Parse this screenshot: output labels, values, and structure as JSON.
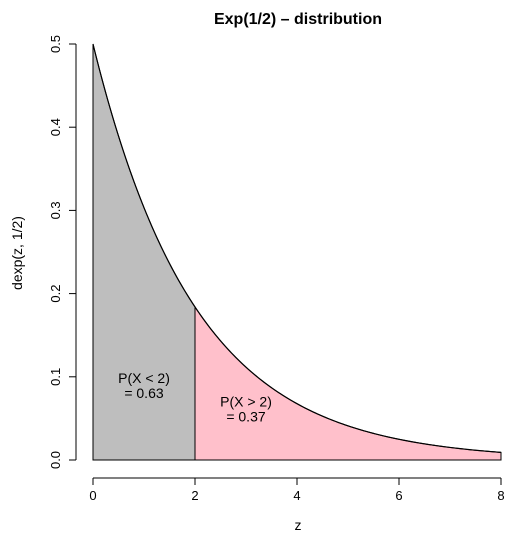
{
  "chart_data": {
    "type": "area",
    "title": "Exp(1/2) – distribution",
    "xlabel": "z",
    "ylabel": "dexp(z, 1/2)",
    "rate": 0.5,
    "xlim": [
      0,
      8
    ],
    "ylim": [
      0,
      0.5
    ],
    "x_ticks": [
      0,
      2,
      4,
      6,
      8
    ],
    "y_ticks": [
      0.0,
      0.1,
      0.2,
      0.3,
      0.4,
      0.5
    ],
    "y_tick_labels": [
      "0.0",
      "0.1",
      "0.2",
      "0.3",
      "0.4",
      "0.5"
    ],
    "grid": false,
    "split_x": 2,
    "regions": [
      {
        "x_from": 0,
        "x_to": 2,
        "fill": "#bebebe"
      },
      {
        "x_from": 2,
        "x_to": 8,
        "fill": "#ffc0cb"
      }
    ],
    "annotations": [
      {
        "line1": "P(X < 2)",
        "line2": "= 0.63",
        "x": 1.0,
        "y": 0.09
      },
      {
        "line1": "P(X > 2)",
        "line2": "= 0.37",
        "x": 3.0,
        "y": 0.062
      }
    ]
  }
}
